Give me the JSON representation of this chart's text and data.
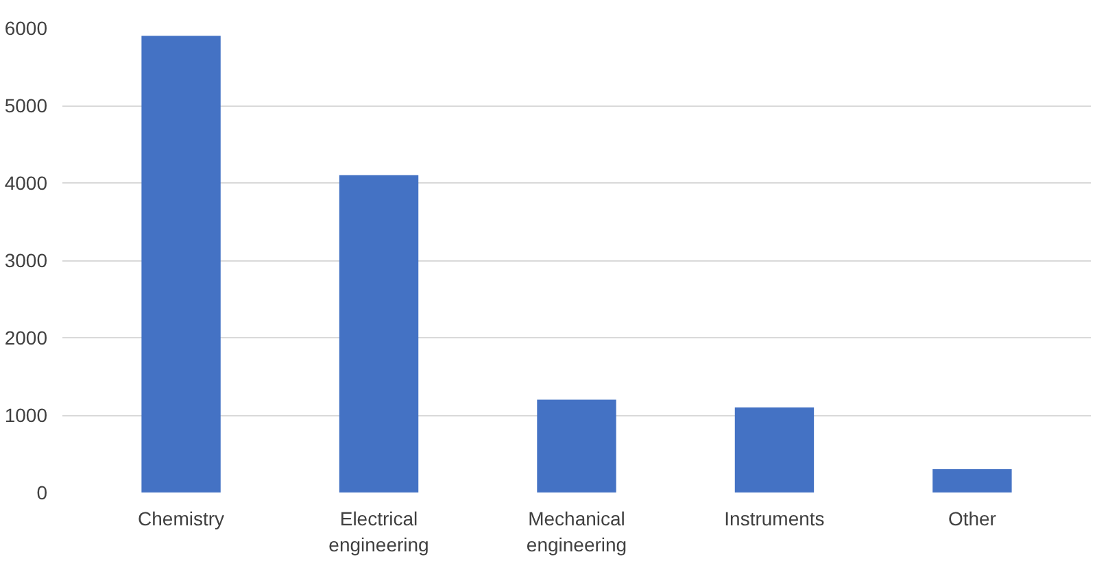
{
  "chart_data": {
    "type": "bar",
    "categories": [
      "Chemistry",
      "Electrical engineering",
      "Mechanical engineering",
      "Instruments",
      "Other"
    ],
    "values": [
      5900,
      4100,
      1200,
      1100,
      300
    ],
    "color": "#4472c4",
    "ylim": [
      0,
      6000
    ],
    "yticks": [
      0,
      1000,
      2000,
      3000,
      4000,
      5000,
      6000
    ],
    "grid": "y"
  }
}
